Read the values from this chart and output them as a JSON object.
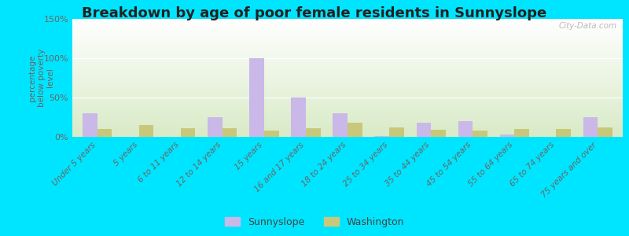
{
  "title": "Breakdown by age of poor female residents in Sunnyslope",
  "categories": [
    "Under 5 years",
    "5 years",
    "6 to 11 years",
    "12 to 14 years",
    "15 years",
    "16 and 17 years",
    "18 to 24 years",
    "25 to 34 years",
    "35 to 44 years",
    "45 to 54 years",
    "55 to 64 years",
    "65 to 74 years",
    "75 years and over"
  ],
  "sunnyslope": [
    30,
    0,
    0,
    25,
    100,
    50,
    30,
    1,
    18,
    20,
    3,
    0,
    25
  ],
  "washington": [
    10,
    15,
    11,
    11,
    8,
    11,
    18,
    12,
    9,
    8,
    10,
    10,
    12
  ],
  "sunnyslope_color": "#c9b8e8",
  "washington_color": "#c8c87a",
  "ylabel": "percentage\nbelow poverty\nlevel",
  "ylim": [
    0,
    150
  ],
  "yticks": [
    0,
    50,
    100,
    150
  ],
  "ytick_labels": [
    "0%",
    "50%",
    "100%",
    "150%"
  ],
  "grad_top": "#e8ede0",
  "grad_bottom": "#f8f8f0",
  "title_fontsize": 13,
  "legend_sunnyslope": "Sunnyslope",
  "legend_washington": "Washington",
  "watermark": "City-Data.com",
  "outer_bg": "#00e5ff",
  "plot_bg_top": "#d8e8c8",
  "plot_bg_bottom": "#f5f8ee"
}
